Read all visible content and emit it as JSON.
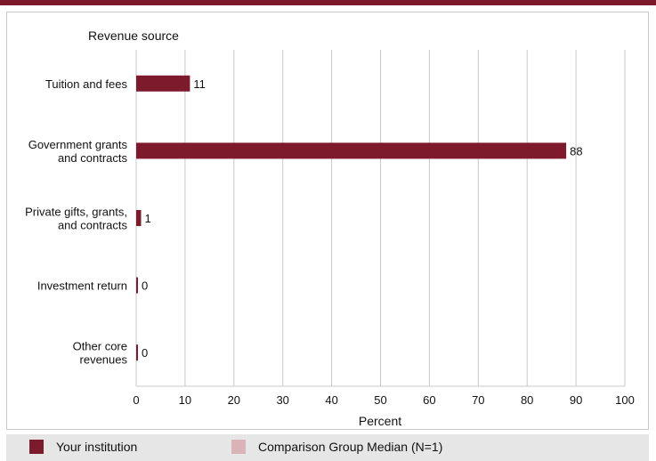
{
  "chart_data": {
    "type": "bar",
    "orientation": "horizontal",
    "title": "Revenue source",
    "xlabel": "Percent",
    "ylabel": "",
    "xlim": [
      0,
      100
    ],
    "ticks": [
      0,
      10,
      20,
      30,
      40,
      50,
      60,
      70,
      80,
      90,
      100
    ],
    "grid": true,
    "categories": [
      [
        "Tuition and fees"
      ],
      [
        "Government grants",
        "and contracts"
      ],
      [
        "Private gifts, grants,",
        "and contracts"
      ],
      [
        "Investment return"
      ],
      [
        "Other core",
        "revenues"
      ]
    ],
    "series": [
      {
        "name": "Your institution",
        "color": "#7d1a2c",
        "values": [
          11,
          88,
          1,
          0,
          0
        ],
        "value_labels": [
          "11",
          "88",
          "1",
          "0",
          "0"
        ]
      },
      {
        "name": "Comparison Group Median (N=1)",
        "color": "#d9b3b8",
        "values": [
          null,
          null,
          null,
          null,
          null
        ]
      }
    ]
  },
  "legend": {
    "items": [
      {
        "label": "Your institution",
        "color": "#7d1a2c"
      },
      {
        "label": "Comparison Group Median (N=1)",
        "color": "#d9b3b8"
      }
    ]
  },
  "colors": {
    "accent": "#7d1a2c",
    "grid": "#c8c8c8",
    "legend_bg": "#e6e6e6"
  }
}
